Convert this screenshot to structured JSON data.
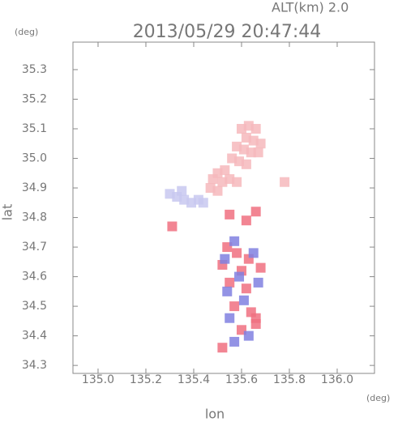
{
  "chart_data": {
    "type": "scatter",
    "title": "2013/05/29 20:47:44",
    "subtitle": "ALT(km) 2.0",
    "x_label": "lon",
    "x_unit": "(deg)",
    "y_label": "lat",
    "y_unit": "(deg)",
    "xlim": [
      134.895,
      136.156
    ],
    "ylim": [
      34.273,
      35.393
    ],
    "xticks": [
      {
        "value": 135,
        "label": "135.0"
      },
      135.2,
      135.4,
      135.6,
      135.8,
      {
        "value": 136,
        "label": "136.0"
      }
    ],
    "yticks": [
      34.3,
      34.4,
      34.5,
      34.6,
      34.7,
      34.8,
      34.9,
      {
        "value": 35,
        "label": "35.0"
      },
      35.1,
      35.2,
      35.3
    ],
    "series": [
      {
        "color": "#f6b8bc",
        "x": [
          135.6,
          135.63,
          135.66,
          135.62,
          135.65,
          135.68,
          135.58,
          135.61,
          135.64,
          135.67,
          135.56,
          135.59,
          135.62,
          135.53,
          135.5,
          135.48,
          135.52,
          135.55,
          135.5,
          135.47,
          135.58,
          135.78
        ],
        "values": [
          35.1,
          35.11,
          35.1,
          35.07,
          35.06,
          35.05,
          35.04,
          35.03,
          35.02,
          35.02,
          35.0,
          34.99,
          34.98,
          34.96,
          34.95,
          34.93,
          34.92,
          34.93,
          34.89,
          34.9,
          34.92,
          34.92
        ]
      },
      {
        "color": "#c8c8f0",
        "x": [
          135.3,
          135.33,
          135.36,
          135.39,
          135.42,
          135.44,
          135.35
        ],
        "values": [
          34.88,
          34.87,
          34.86,
          34.85,
          34.86,
          34.85,
          34.89
        ]
      },
      {
        "color": "#f07080",
        "x": [
          135.55,
          135.62,
          135.66,
          135.54,
          135.58,
          135.63,
          135.52,
          135.6,
          135.68,
          135.55,
          135.62,
          135.57,
          135.64,
          135.66,
          135.6,
          135.52,
          135.31,
          135.66
        ],
        "values": [
          34.81,
          34.79,
          34.82,
          34.7,
          34.68,
          34.66,
          34.64,
          34.62,
          34.63,
          34.58,
          34.56,
          34.5,
          34.48,
          34.44,
          34.42,
          34.36,
          34.77,
          34.46
        ]
      },
      {
        "color": "#8080e0",
        "x": [
          135.57,
          135.65,
          135.53,
          135.59,
          135.67,
          135.54,
          135.61,
          135.55,
          135.63,
          135.57
        ],
        "values": [
          34.72,
          34.68,
          34.66,
          34.6,
          34.58,
          34.55,
          34.52,
          34.46,
          34.4,
          34.38
        ]
      }
    ]
  }
}
